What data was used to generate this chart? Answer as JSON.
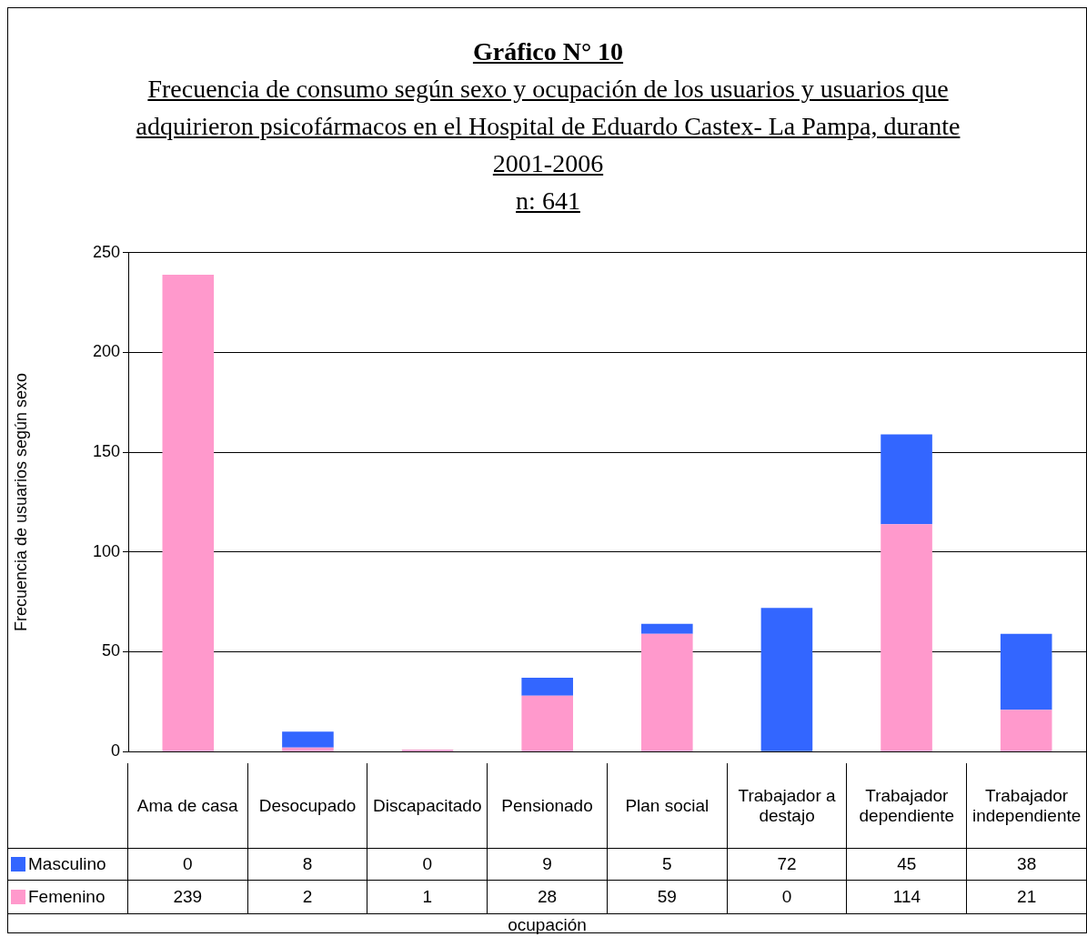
{
  "chart_data": {
    "type": "bar",
    "title": "Gráfico N° 10",
    "subtitle": "Frecuencia de consumo según sexo y ocupación de los usuarios y usuarios que adquirieron psicofármacos en el Hospital de Eduardo Castex- La Pampa, durante 2001-2006",
    "annotations": [
      "n: 641",
      "ocupación"
    ],
    "ylabel": "Frecuencia de usuarios según sexo",
    "categories": [
      "Ama de casa",
      "Desocupado",
      "Discapacitado",
      "Pensionado",
      "Plan social",
      "Trabajador a destajo",
      "Trabajador dependiente",
      "Trabajador independiente"
    ],
    "stacked": true,
    "series": [
      {
        "name": "Femenino",
        "color": "#ff99cc",
        "values": [
          239,
          2,
          1,
          28,
          59,
          0,
          114,
          21
        ]
      },
      {
        "name": "Masculino",
        "color": "#3366ff",
        "values": [
          0,
          8,
          0,
          9,
          5,
          72,
          45,
          38
        ]
      }
    ],
    "ylim": [
      0,
      250
    ],
    "yticks": [
      0,
      50,
      100,
      150,
      200,
      250
    ],
    "grid": "y",
    "legend": "bottom left",
    "data_labels": true
  }
}
